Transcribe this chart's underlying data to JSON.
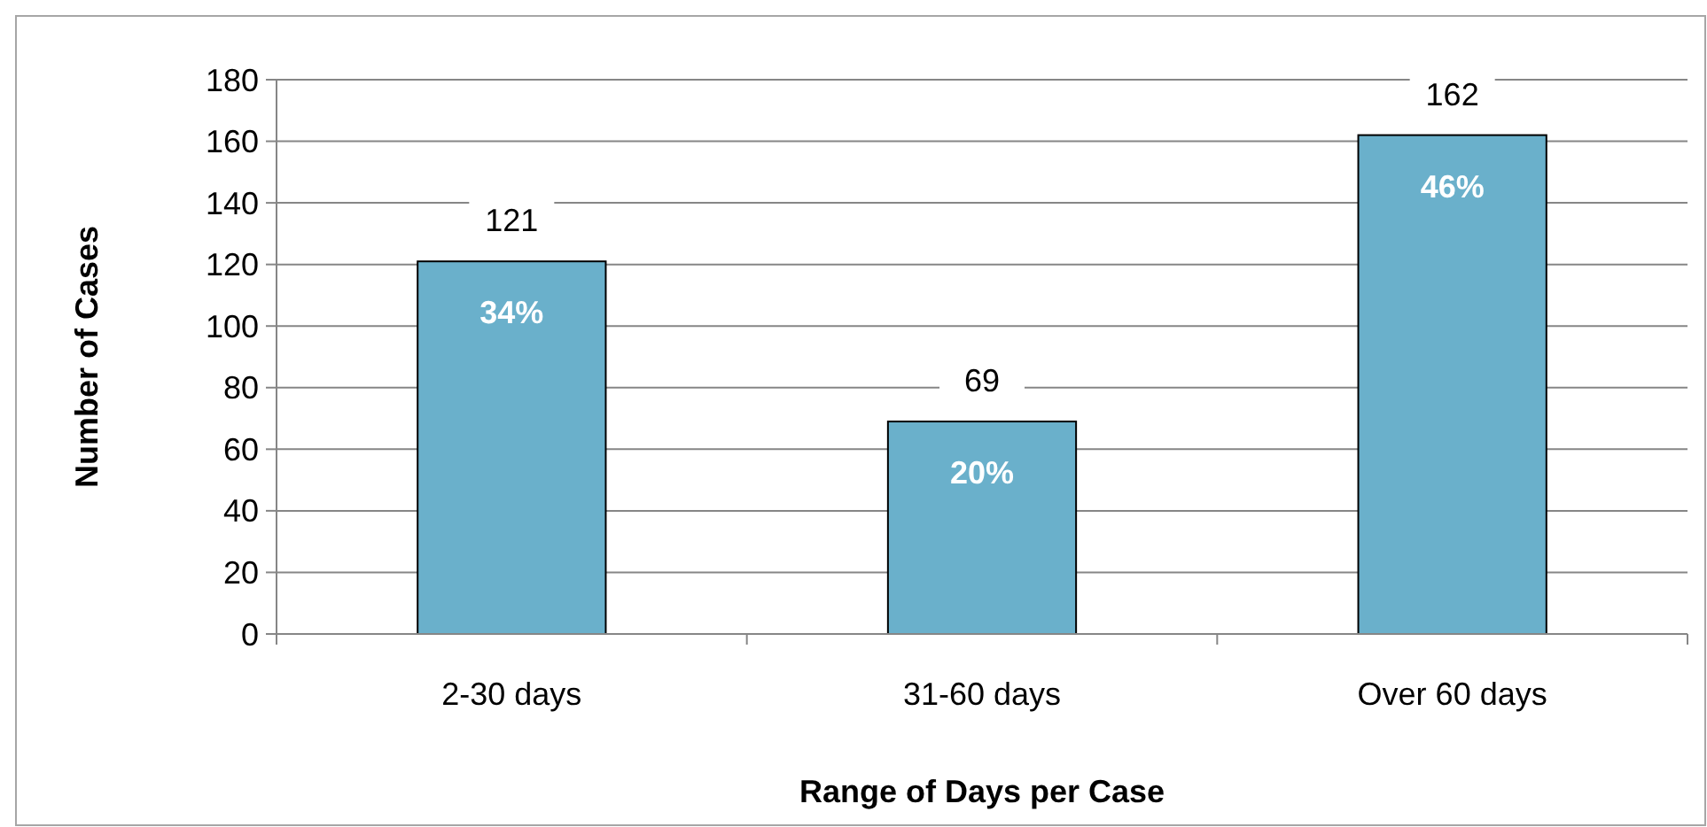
{
  "chart_data": {
    "type": "bar",
    "xlabel": "Range of Days per Case",
    "ylabel": "Number of Cases",
    "categories": [
      "2-30 days",
      "31-60 days",
      "Over 60 days"
    ],
    "values": [
      121,
      69,
      162
    ],
    "color": "#6ab0cb",
    "ylim": [
      0,
      180
    ],
    "yticks": [
      0,
      20,
      40,
      60,
      80,
      100,
      120,
      140,
      160,
      180
    ],
    "grid": "y",
    "data_labels": true,
    "annotations": [
      {
        "text": "34%",
        "x": "2-30 days",
        "y": 121
      },
      {
        "text": "20%",
        "x": "31-60 days",
        "y": 69
      },
      {
        "text": "46%",
        "x": "Over 60 days",
        "y": 162
      }
    ]
  }
}
